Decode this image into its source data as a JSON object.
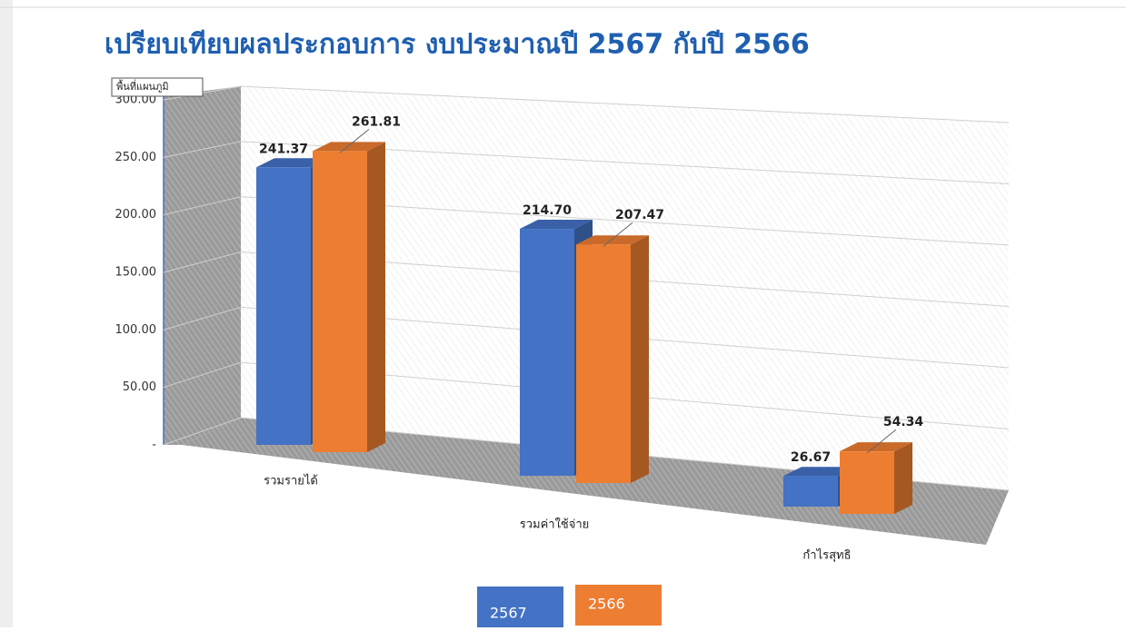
{
  "chart_data": {
    "type": "bar3d",
    "title": "เปรียบเทียบผลประกอบการ งบประมาณปี 2567 กับปี 2566",
    "tooltip": "พื้นที่แผนภูมิ",
    "categories": [
      "รวมรายได้",
      "รวมค่าใช้จ่าย",
      "กำไรสุทธิ"
    ],
    "series": [
      {
        "name": "2567",
        "color": "#4472c4",
        "values": [
          241.37,
          214.7,
          26.67
        ],
        "value_labels": [
          "241.37",
          "214.70",
          "26.67"
        ]
      },
      {
        "name": "2566",
        "color": "#ed7d31",
        "values": [
          261.81,
          207.47,
          54.34
        ],
        "value_labels": [
          "261.81",
          "207.47",
          "54.34"
        ]
      }
    ],
    "ylim": [
      0,
      300
    ],
    "yticks": [
      {
        "value": 0,
        "label": "-"
      },
      {
        "value": 50,
        "label": "50.00"
      },
      {
        "value": 100,
        "label": "100.00"
      },
      {
        "value": 150,
        "label": "150.00"
      },
      {
        "value": 200,
        "label": "200.00"
      },
      {
        "value": 250,
        "label": "250.00"
      },
      {
        "value": 300,
        "label": "300.00"
      }
    ],
    "grid": true,
    "legend": "bottom"
  }
}
